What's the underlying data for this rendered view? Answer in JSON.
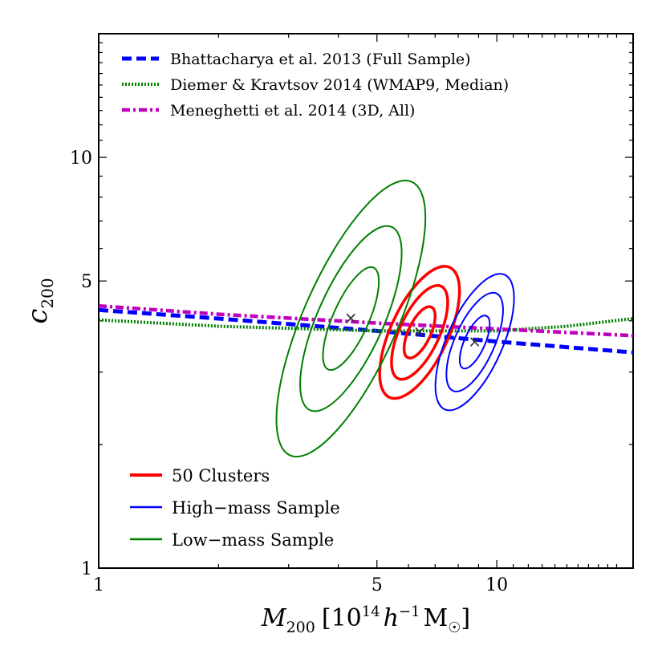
{
  "chart_data": {
    "type": "line",
    "xscale": "log",
    "yscale": "log",
    "xlim": [
      1,
      22
    ],
    "ylim": [
      1,
      20
    ],
    "xticks": [
      {
        "value": 1,
        "label": "1"
      },
      {
        "value": 5,
        "label": "5"
      },
      {
        "value": 10,
        "label": "10"
      }
    ],
    "yticks": [
      {
        "value": 1,
        "label": "1"
      },
      {
        "value": 5,
        "label": "5"
      },
      {
        "value": 10,
        "label": "10"
      }
    ],
    "xlabel": {
      "symbol": "M",
      "subscript": "200",
      "unit_open": "[10",
      "exponent": "14",
      "unit_mid": "h",
      "unit_exp": "−1",
      "unit_tail": "M",
      "unit_sub": "☉",
      "unit_close": "]"
    },
    "ylabel": {
      "symbol": "c",
      "subscript": "200"
    },
    "relations": [
      {
        "name": "Bhattacharya et al. 2013 (Full Sample)",
        "color": "#0000ff",
        "style": "dashed",
        "x": [
          1,
          2,
          5,
          10,
          22
        ],
        "y": [
          4.25,
          4.05,
          3.78,
          3.56,
          3.35
        ]
      },
      {
        "name": "Diemer & Kravtsov 2014 (WMAP9, Median)",
        "color": "#007f00",
        "style": "dotted",
        "x": [
          1,
          2,
          5,
          10,
          15,
          22
        ],
        "y": [
          4.02,
          3.88,
          3.78,
          3.78,
          3.88,
          4.05
        ]
      },
      {
        "name": "Meneghetti et al. 2014 (3D, All)",
        "color": "#bf00bf",
        "style": "dashdot",
        "x": [
          1,
          2,
          5,
          10,
          22
        ],
        "y": [
          4.35,
          4.15,
          3.95,
          3.82,
          3.68
        ]
      }
    ],
    "samples": [
      {
        "name": "50 Clusters",
        "color": "#ff0000",
        "stroke_width": 3.5,
        "center": [
          6.4,
          3.75
        ],
        "contours": [
          {
            "semi_major_dex": 0.07,
            "semi_minor_dex": 0.028,
            "angle_deg": -65
          },
          {
            "semi_major_dex": 0.128,
            "semi_minor_dex": 0.05,
            "angle_deg": -65
          },
          {
            "semi_major_dex": 0.18,
            "semi_minor_dex": 0.072,
            "angle_deg": -65
          }
        ]
      },
      {
        "name": "High−mass Sample",
        "color": "#0000ff",
        "stroke_width": 2,
        "center": [
          8.8,
          3.55
        ],
        "contours": [
          {
            "semi_major_dex": 0.072,
            "semi_minor_dex": 0.026,
            "angle_deg": -66
          },
          {
            "semi_major_dex": 0.134,
            "semi_minor_dex": 0.05,
            "angle_deg": -66
          },
          {
            "semi_major_dex": 0.185,
            "semi_minor_dex": 0.07,
            "angle_deg": -66
          }
        ]
      },
      {
        "name": "Low−mass Sample",
        "color": "#007f00",
        "stroke_width": 2,
        "center": [
          4.3,
          4.05
        ],
        "contours": [
          {
            "semi_major_dex": 0.14,
            "semi_minor_dex": 0.045,
            "angle_deg": -66
          },
          {
            "semi_major_dex": 0.252,
            "semi_minor_dex": 0.083,
            "angle_deg": -66
          },
          {
            "semi_major_dex": 0.376,
            "semi_minor_dex": 0.118,
            "angle_deg": -66
          }
        ]
      }
    ],
    "best_fit_marker": "×",
    "relation_legend_position": "upper-left",
    "sample_legend_position": "lower-left",
    "grid": false
  }
}
